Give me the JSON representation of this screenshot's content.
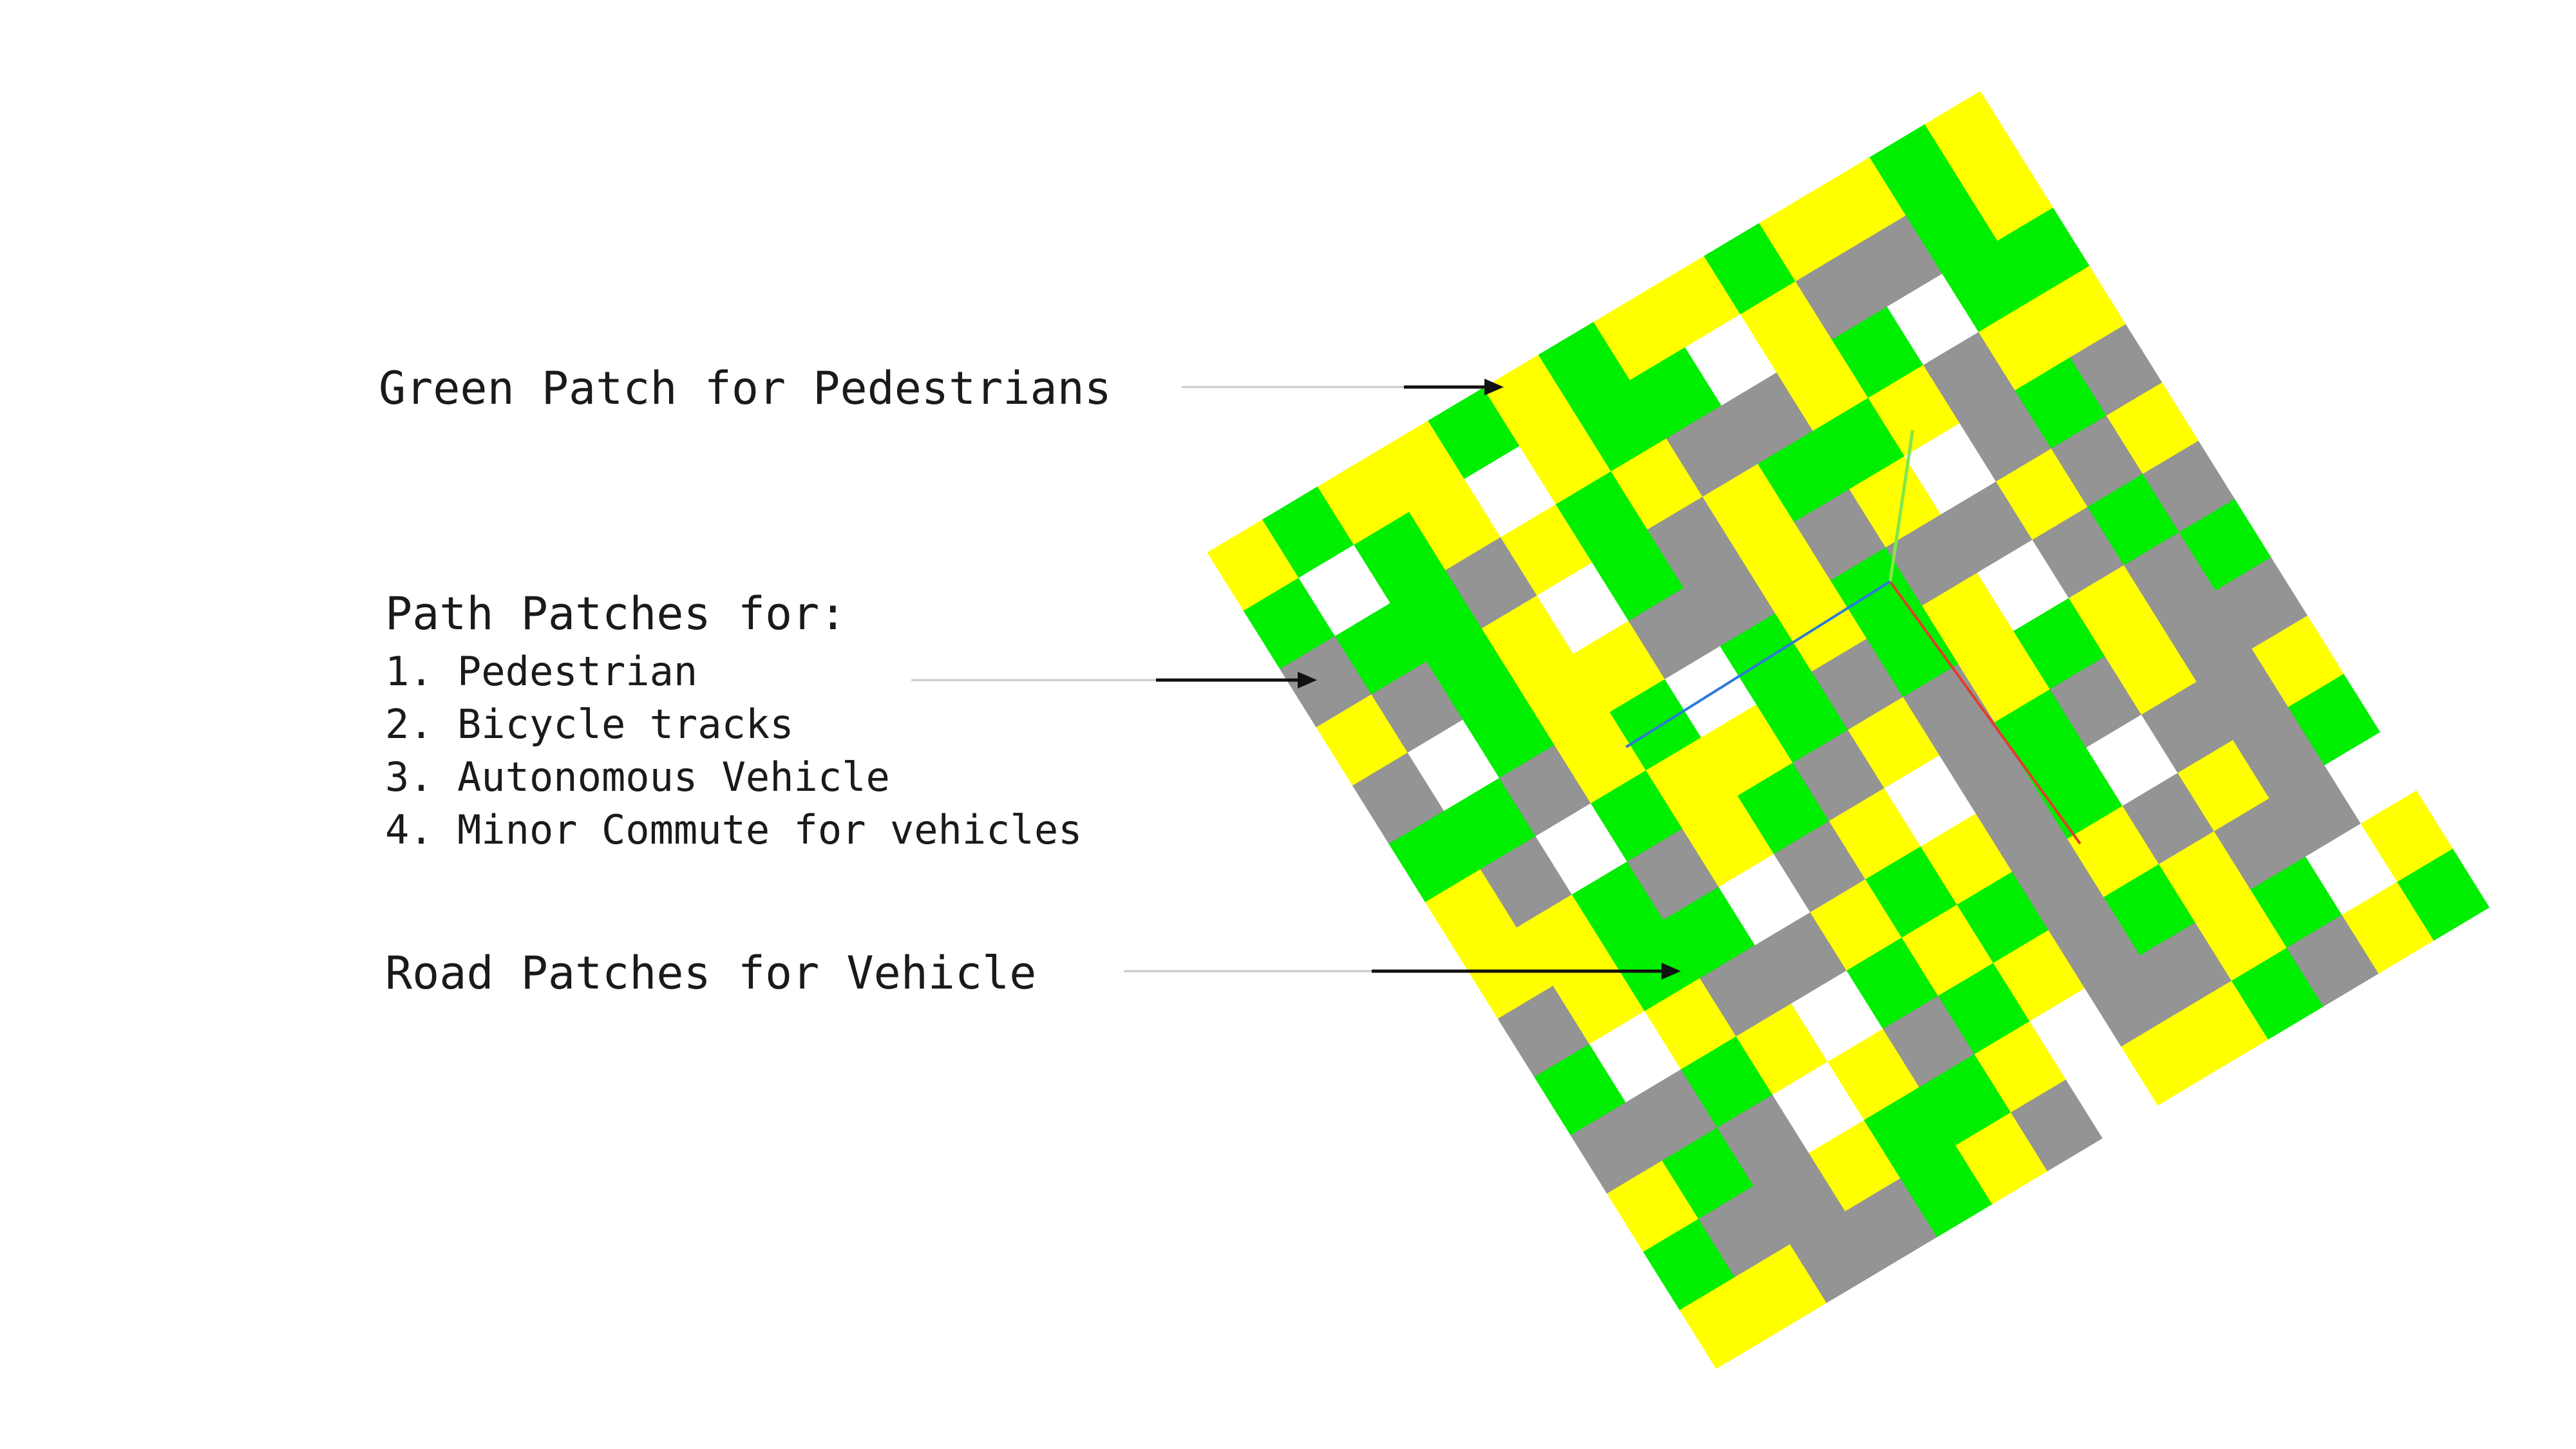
{
  "colors": {
    "pedestrian_green": "#00EE00",
    "path_yellow": "#FFFF00",
    "road_gray": "#949494",
    "empty_white": "#FFFFFF",
    "arrow": "#111111",
    "leader_line": "#C8C8C8",
    "axis_x": "#E23B2E",
    "axis_y": "#7FE84A",
    "axis_z": "#2E7BD6"
  },
  "labels": {
    "green_patch": "Green Patch for Pedestrians",
    "path_patches_title": "Path Patches for:",
    "path_items": [
      "1. Pedestrian",
      "2. Bicycle tracks",
      "3. Autonomous Vehicle",
      "4. Minor Commute for vehicles"
    ],
    "road_patches": "Road Patches for Vehicle"
  },
  "grid": {
    "legend": {
      "G": "pedestrian_green",
      "Y": "path_yellow",
      "R": "road_gray",
      "W": "empty_white"
    },
    "rows": [
      "YGYYGYGYYGYYGY",
      "GWGYWYGGWYRRGY",
      "RGGRYGYRRYGWGG",
      "YRGYWGRYGGYRYY",
      "RWGYYRRYRYWRGR",
      "GGRYGWGYGRRYRY",
      "YRWGYYGRGYWRGR",
      "YYGRYGRYRYGYRG",
      "RYGGWRYWRGRYRR",
      "GWYRRYGYRGWRRY",
      "RRGYWGYGRYRYRG",
      "YGRWYRGYRGYRRW",
      "GRRYGGYWRRYGWY",
      "YYRRGYRWYYGRYG"
    ]
  }
}
